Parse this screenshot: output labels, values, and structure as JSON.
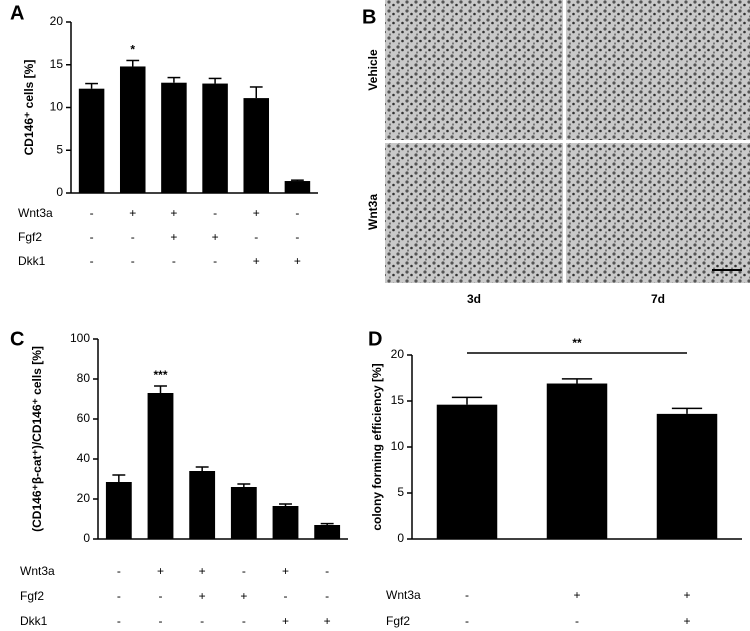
{
  "chart_data": [
    {
      "type": "bar",
      "panel": "A",
      "ylabel": "CD146⁺ cells [%]",
      "color": "#000000",
      "values": [
        12.2,
        14.8,
        12.9,
        12.8,
        11.1,
        1.4
      ],
      "errors": [
        0.6,
        0.7,
        0.6,
        0.6,
        1.3,
        0.1
      ],
      "significance": [
        null,
        "*",
        null,
        null,
        null,
        null
      ],
      "ylim": [
        0,
        20
      ],
      "yticks": [
        0,
        5,
        10,
        15,
        20
      ],
      "conditions": [
        {
          "label": "Wnt3a",
          "signs": [
            "-",
            "+",
            "+",
            "-",
            "+",
            "-"
          ]
        },
        {
          "label": "Fgf2",
          "signs": [
            "-",
            "-",
            "+",
            "+",
            "-",
            "-"
          ]
        },
        {
          "label": "Dkk1",
          "signs": [
            "-",
            "-",
            "-",
            "-",
            "+",
            "+"
          ]
        }
      ]
    },
    {
      "type": "bar",
      "panel": "C",
      "ylabel": "(CD146⁺β-cat⁺)/CD146⁺ cells [%]",
      "color": "#000000",
      "values": [
        28.5,
        73,
        34,
        26,
        16.5,
        7
      ],
      "errors": [
        3.5,
        3.5,
        2,
        1.5,
        1,
        0.7
      ],
      "significance": [
        null,
        "***",
        null,
        null,
        null,
        null
      ],
      "ylim": [
        0,
        100
      ],
      "yticks": [
        0,
        20,
        40,
        60,
        80,
        100
      ],
      "conditions": [
        {
          "label": "Wnt3a",
          "signs": [
            "-",
            "+",
            "+",
            "-",
            "+",
            "-"
          ]
        },
        {
          "label": "Fgf2",
          "signs": [
            "-",
            "-",
            "+",
            "+",
            "-",
            "-"
          ]
        },
        {
          "label": "Dkk1",
          "signs": [
            "-",
            "-",
            "-",
            "-",
            "+",
            "+"
          ]
        }
      ]
    },
    {
      "type": "bar",
      "panel": "D",
      "ylabel": "colony forming efficiency [%]",
      "color": "#000000",
      "values": [
        14.6,
        16.9,
        13.6
      ],
      "errors": [
        0.8,
        0.5,
        0.6
      ],
      "significance_bracket": "**",
      "ylim": [
        0,
        20
      ],
      "yticks": [
        0,
        5,
        10,
        15,
        20
      ],
      "conditions": [
        {
          "label": "Wnt3a",
          "signs": [
            "-",
            "+",
            "+"
          ]
        },
        {
          "label": "Fgf2",
          "signs": [
            "-",
            "-",
            "+"
          ]
        }
      ]
    }
  ],
  "panel_b": {
    "label": "B",
    "rows": [
      "Vehicle",
      "Wnt3a"
    ],
    "columns": [
      "3d",
      "7d"
    ]
  }
}
